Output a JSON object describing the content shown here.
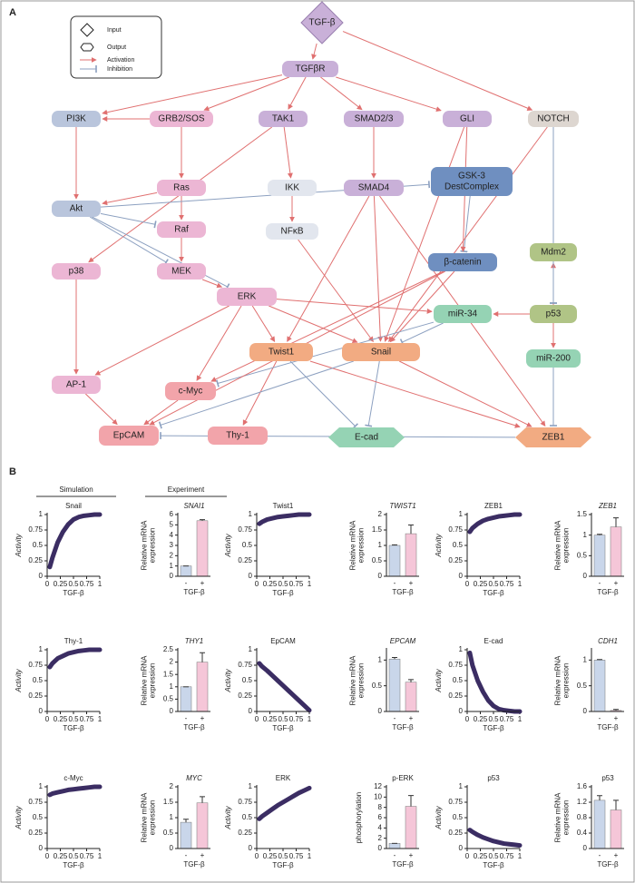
{
  "panel_a": {
    "label": "A",
    "legend": [
      "Input",
      "Output",
      "Activation",
      "Inhibition"
    ],
    "nodes": [
      {
        "label": "TGF-β"
      },
      {
        "label": "TGFβR"
      },
      {
        "label": "PI3K"
      },
      {
        "label": "GRB2/SOS"
      },
      {
        "label": "TAK1"
      },
      {
        "label": "SMAD2/3"
      },
      {
        "label": "GLI"
      },
      {
        "label": "NOTCH"
      },
      {
        "label": "Ras"
      },
      {
        "label": "IKK"
      },
      {
        "label": "SMAD4"
      },
      {
        "label": [
          "GSK-3",
          "DestComplex"
        ]
      },
      {
        "label": "Akt"
      },
      {
        "label": "Raf"
      },
      {
        "label": "NFκB"
      },
      {
        "label": "Mdm2"
      },
      {
        "label": "p38"
      },
      {
        "label": "MEK"
      },
      {
        "label": "β-catenin"
      },
      {
        "label": "ERK"
      },
      {
        "label": "miR-34"
      },
      {
        "label": "p53"
      },
      {
        "label": "Twist1"
      },
      {
        "label": "Snail"
      },
      {
        "label": "miR-200"
      },
      {
        "label": "AP-1"
      },
      {
        "label": "c-Myc"
      },
      {
        "label": "Thy-1"
      },
      {
        "label": "EpCAM"
      },
      {
        "label": "E-cad"
      },
      {
        "label": "ZEB1"
      }
    ]
  },
  "panel_b": {
    "label": "B",
    "headers": [
      "Simulation",
      "Experiment"
    ]
  },
  "chart_data": [
    {
      "type": "line",
      "title": "Snail",
      "xlabel": "TGF-β",
      "ylabel": "Activity",
      "color": "#3b2d63",
      "x": [
        0.05,
        0.1,
        0.2,
        0.3,
        0.4,
        0.5,
        0.6,
        0.7,
        0.8,
        0.9,
        1
      ],
      "values": [
        0.15,
        0.3,
        0.55,
        0.72,
        0.84,
        0.92,
        0.96,
        0.98,
        0.99,
        1,
        1
      ],
      "xlim": [
        0,
        1
      ],
      "ylim": [
        0,
        1
      ],
      "xticks": [
        0,
        0.25,
        0.5,
        0.75,
        1
      ],
      "yticks": [
        0,
        0.25,
        0.5,
        0.75,
        1
      ]
    },
    {
      "type": "bar",
      "title": "SNAI1",
      "title_style": "italic",
      "xlabel": "TGF-β",
      "ylabel": [
        "Relative mRNA",
        "expression"
      ],
      "categories": [
        "-",
        "+"
      ],
      "colors": [
        "#c9d6ea",
        "#f5c6d8"
      ],
      "values": [
        1,
        5.4
      ],
      "errors": [
        0,
        0.1
      ],
      "ylim": [
        0,
        6
      ],
      "yticks": [
        0,
        1,
        2,
        3,
        4,
        5,
        6
      ]
    },
    {
      "type": "line",
      "title": "Twist1",
      "xlabel": "TGF-β",
      "ylabel": "Activity",
      "color": "#3b2d63",
      "x": [
        0.05,
        0.1,
        0.2,
        0.3,
        0.4,
        0.5,
        0.6,
        0.7,
        0.8,
        0.9,
        1
      ],
      "values": [
        0.85,
        0.88,
        0.92,
        0.94,
        0.96,
        0.97,
        0.98,
        0.99,
        1,
        1,
        1
      ],
      "xlim": [
        0,
        1
      ],
      "ylim": [
        0,
        1
      ],
      "xticks": [
        0,
        0.25,
        0.5,
        0.75,
        1
      ],
      "yticks": [
        0,
        0.25,
        0.5,
        0.75,
        1
      ]
    },
    {
      "type": "bar",
      "title": "TWIST1",
      "title_style": "italic",
      "xlabel": "TGF-β",
      "ylabel": [
        "Relative mRNA",
        "expression"
      ],
      "categories": [
        "-",
        "+"
      ],
      "colors": [
        "#c9d6ea",
        "#f5c6d8"
      ],
      "values": [
        1,
        1.38
      ],
      "errors": [
        0.02,
        0.28
      ],
      "ylim": [
        0,
        2
      ],
      "yticks": [
        0,
        0.5,
        1,
        1.5,
        2
      ]
    },
    {
      "type": "line",
      "title": "ZEB1",
      "xlabel": "TGF-β",
      "ylabel": "Activity",
      "color": "#3b2d63",
      "x": [
        0.05,
        0.1,
        0.2,
        0.3,
        0.4,
        0.5,
        0.6,
        0.7,
        0.8,
        0.9,
        1
      ],
      "values": [
        0.72,
        0.78,
        0.85,
        0.9,
        0.93,
        0.95,
        0.97,
        0.98,
        0.99,
        1,
        1
      ],
      "xlim": [
        0,
        1
      ],
      "ylim": [
        0,
        1
      ],
      "xticks": [
        0,
        0.25,
        0.5,
        0.75,
        1
      ],
      "yticks": [
        0,
        0.25,
        0.5,
        0.75,
        1
      ]
    },
    {
      "type": "bar",
      "title": "ZEB1",
      "title_style": "italic",
      "xlabel": "TGF-β",
      "ylabel": [
        "Relative mRNA",
        "expression"
      ],
      "categories": [
        "-",
        "+"
      ],
      "colors": [
        "#c9d6ea",
        "#f5c6d8"
      ],
      "values": [
        1,
        1.2
      ],
      "errors": [
        0.02,
        0.22
      ],
      "ylim": [
        0,
        1.5
      ],
      "yticks": [
        0,
        0.5,
        1,
        1.5
      ]
    },
    {
      "type": "line",
      "title": "Thy-1",
      "xlabel": "TGF-β",
      "ylabel": "Activity",
      "color": "#3b2d63",
      "x": [
        0.05,
        0.1,
        0.2,
        0.3,
        0.4,
        0.5,
        0.6,
        0.7,
        0.8,
        0.9,
        1
      ],
      "values": [
        0.72,
        0.78,
        0.86,
        0.9,
        0.94,
        0.96,
        0.98,
        0.99,
        1,
        1,
        1
      ],
      "xlim": [
        0,
        1
      ],
      "ylim": [
        0,
        1
      ],
      "xticks": [
        0,
        0.25,
        0.5,
        0.75,
        1
      ],
      "yticks": [
        0,
        0.25,
        0.5,
        0.75,
        1
      ]
    },
    {
      "type": "bar",
      "title": "THY1",
      "title_style": "italic",
      "xlabel": "TGF-β",
      "ylabel": [
        "Relative mRNA",
        "expression"
      ],
      "categories": [
        "-",
        "+"
      ],
      "colors": [
        "#c9d6ea",
        "#f5c6d8"
      ],
      "values": [
        1,
        2.0
      ],
      "errors": [
        0,
        0.38
      ],
      "ylim": [
        0,
        2.5
      ],
      "yticks": [
        0,
        0.5,
        1,
        1.5,
        2,
        2.5
      ]
    },
    {
      "type": "line",
      "title": "EpCAM",
      "xlabel": "TGF-β",
      "ylabel": "Activity",
      "color": "#3b2d63",
      "x": [
        0.05,
        0.1,
        0.2,
        0.3,
        0.4,
        0.5,
        0.6,
        0.7,
        0.8,
        0.9,
        1
      ],
      "values": [
        0.78,
        0.73,
        0.66,
        0.58,
        0.5,
        0.42,
        0.34,
        0.26,
        0.18,
        0.1,
        0.02
      ],
      "xlim": [
        0,
        1
      ],
      "ylim": [
        0,
        1
      ],
      "xticks": [
        0,
        0.25,
        0.5,
        0.75,
        1
      ],
      "yticks": [
        0,
        0.25,
        0.5,
        0.75,
        1
      ]
    },
    {
      "type": "bar",
      "title": "EPCAM",
      "title_style": "italic",
      "xlabel": "TGF-β",
      "ylabel": [
        "Relative mRNA",
        "expression"
      ],
      "categories": [
        "-",
        "+"
      ],
      "colors": [
        "#c9d6ea",
        "#f5c6d8"
      ],
      "values": [
        1.02,
        0.57
      ],
      "errors": [
        0.03,
        0.05
      ],
      "ylim": [
        0,
        1.2
      ],
      "yticks": [
        0,
        0.5,
        1
      ]
    },
    {
      "type": "line",
      "title": "E-cad",
      "xlabel": "TGF-β",
      "ylabel": "Activity",
      "color": "#3b2d63",
      "x": [
        0.05,
        0.1,
        0.2,
        0.3,
        0.4,
        0.5,
        0.6,
        0.7,
        0.8,
        0.9,
        1
      ],
      "values": [
        0.95,
        0.75,
        0.5,
        0.32,
        0.18,
        0.09,
        0.04,
        0.02,
        0.01,
        0,
        0
      ],
      "xlim": [
        0,
        1
      ],
      "ylim": [
        0,
        1
      ],
      "xticks": [
        0,
        0.25,
        0.5,
        0.75,
        1
      ],
      "yticks": [
        0,
        0.25,
        0.5,
        0.75,
        1
      ]
    },
    {
      "type": "bar",
      "title": "CDH1",
      "title_style": "italic",
      "xlabel": "TGF-β",
      "ylabel": [
        "Relative mRNA",
        "expression"
      ],
      "categories": [
        "-",
        "+"
      ],
      "colors": [
        "#c9d6ea",
        "#f5c6d8"
      ],
      "values": [
        1,
        0.02
      ],
      "errors": [
        0.01,
        0.02
      ],
      "ylim": [
        0,
        1.2
      ],
      "yticks": [
        0,
        0.5,
        1
      ]
    },
    {
      "type": "line",
      "title": "c-Myc",
      "xlabel": "TGF-β",
      "ylabel": "Activity",
      "color": "#3b2d63",
      "x": [
        0.05,
        0.1,
        0.2,
        0.3,
        0.4,
        0.5,
        0.6,
        0.7,
        0.8,
        0.9,
        1
      ],
      "values": [
        0.87,
        0.89,
        0.91,
        0.93,
        0.95,
        0.96,
        0.97,
        0.98,
        0.99,
        1,
        1
      ],
      "xlim": [
        0,
        1
      ],
      "ylim": [
        0,
        1
      ],
      "xticks": [
        0,
        0.25,
        0.5,
        0.75,
        1
      ],
      "yticks": [
        0,
        0.25,
        0.5,
        0.75,
        1
      ]
    },
    {
      "type": "bar",
      "title": "MYC",
      "title_style": "italic",
      "xlabel": "TGF-β",
      "ylabel": [
        "Relative mRNA",
        "expression"
      ],
      "categories": [
        "-",
        "+"
      ],
      "colors": [
        "#c9d6ea",
        "#f5c6d8"
      ],
      "values": [
        0.85,
        1.48
      ],
      "errors": [
        0.1,
        0.2
      ],
      "ylim": [
        0,
        2
      ],
      "yticks": [
        0,
        0.5,
        1,
        1.5,
        2
      ]
    },
    {
      "type": "line",
      "title": "ERK",
      "xlabel": "TGF-β",
      "ylabel": "Activity",
      "color": "#3b2d63",
      "x": [
        0.05,
        0.1,
        0.2,
        0.3,
        0.4,
        0.5,
        0.6,
        0.7,
        0.8,
        0.9,
        1
      ],
      "values": [
        0.48,
        0.52,
        0.58,
        0.64,
        0.7,
        0.75,
        0.8,
        0.85,
        0.9,
        0.94,
        0.98
      ],
      "xlim": [
        0,
        1
      ],
      "ylim": [
        0,
        1
      ],
      "xticks": [
        0,
        0.25,
        0.5,
        0.75,
        1
      ],
      "yticks": [
        0,
        0.25,
        0.5,
        0.75,
        1
      ]
    },
    {
      "type": "bar",
      "title": "p-ERK",
      "xlabel": "TGF-β",
      "ylabel": [
        "phosphorylation"
      ],
      "categories": [
        "-",
        "+"
      ],
      "colors": [
        "#c9d6ea",
        "#f5c6d8"
      ],
      "values": [
        1,
        8.2
      ],
      "errors": [
        0,
        2.1
      ],
      "ylim": [
        0,
        12
      ],
      "yticks": [
        0,
        2,
        4,
        6,
        8,
        10,
        12
      ]
    },
    {
      "type": "line",
      "title": "p53",
      "xlabel": "TGF-β",
      "ylabel": "Activity",
      "color": "#3b2d63",
      "x": [
        0.05,
        0.1,
        0.2,
        0.3,
        0.4,
        0.5,
        0.6,
        0.7,
        0.8,
        0.9,
        1
      ],
      "values": [
        0.3,
        0.27,
        0.22,
        0.18,
        0.15,
        0.12,
        0.1,
        0.08,
        0.07,
        0.06,
        0.05
      ],
      "xlim": [
        0,
        1
      ],
      "ylim": [
        0,
        1
      ],
      "xticks": [
        0,
        0.25,
        0.5,
        0.75,
        1
      ],
      "yticks": [
        0,
        0.25,
        0.5,
        0.75,
        1
      ]
    },
    {
      "type": "bar",
      "title": "p53",
      "xlabel": "TGF-β",
      "ylabel": [
        "Relative mRNA",
        "expression"
      ],
      "categories": [
        "-",
        "+"
      ],
      "colors": [
        "#c9d6ea",
        "#f5c6d8"
      ],
      "values": [
        1.25,
        1.0
      ],
      "errors": [
        0.12,
        0.25
      ],
      "ylim": [
        0,
        1.6
      ],
      "yticks": [
        0,
        0.4,
        0.8,
        1.2,
        1.6
      ]
    }
  ]
}
